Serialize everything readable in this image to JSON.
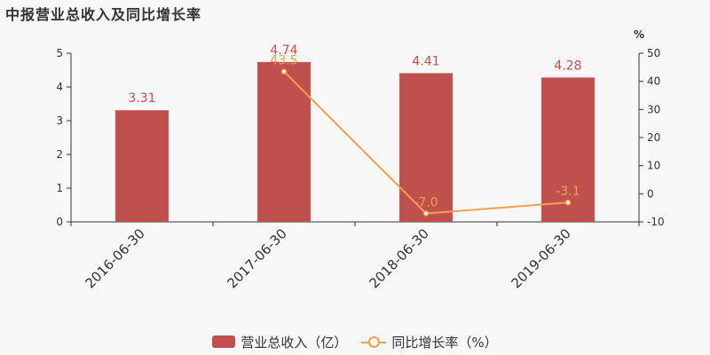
{
  "title": "中报营业总收入及同比增长率",
  "colors": {
    "bar": "#c0504d",
    "line": "#f0a050",
    "axis": "#333333"
  },
  "chart_data": {
    "type": "bar",
    "categories": [
      "2016-06-30",
      "2017-06-30",
      "2018-06-30",
      "2019-06-30"
    ],
    "series": [
      {
        "name": "营业总收入（亿）",
        "type": "bar",
        "axis": "left",
        "values": [
          3.31,
          4.74,
          4.41,
          4.28
        ],
        "labels": [
          "3.31",
          "4.74",
          "4.41",
          "4.28"
        ]
      },
      {
        "name": "同比增长率（%）",
        "type": "line",
        "axis": "right",
        "values": [
          null,
          43.5,
          -7.0,
          -3.1
        ],
        "labels": [
          "",
          "43.5",
          "-7.0",
          "-3.1"
        ]
      }
    ],
    "ylim_left": [
      0,
      5
    ],
    "yticks_left": [
      0,
      1,
      2,
      3,
      4,
      5
    ],
    "ylim_right": [
      -10,
      50
    ],
    "yticks_right": [
      -10,
      0,
      10,
      20,
      30,
      40,
      50
    ],
    "right_unit": "%",
    "grid": false,
    "legend_position": "bottom"
  }
}
